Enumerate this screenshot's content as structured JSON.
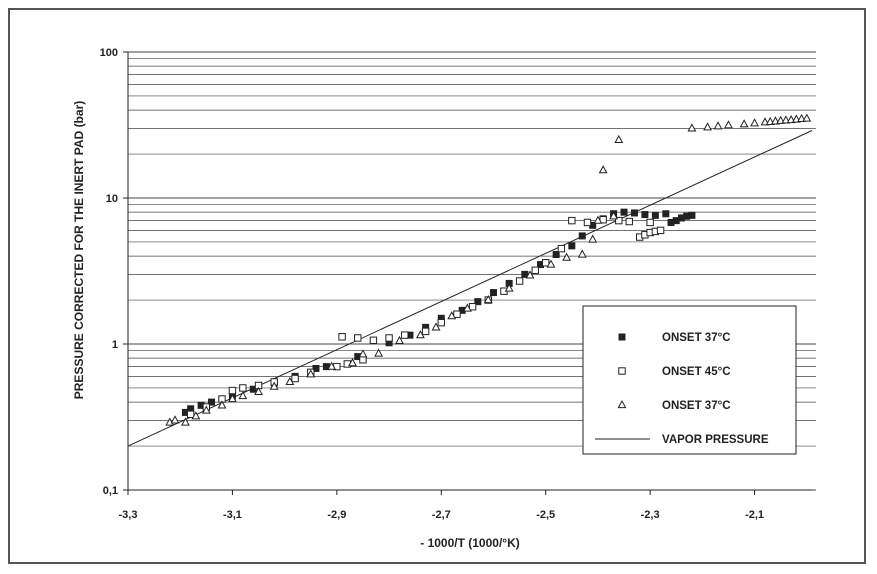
{
  "chart_data": {
    "type": "scatter",
    "x_label": "- 1000/T (1000/°K)",
    "y_label": "PRESSURE CORRECTED FOR THE INERT PAD (bar)",
    "x_range": [
      -3.3,
      -1.99
    ],
    "y_range": [
      0.1,
      100
    ],
    "y_scale": "log",
    "x_ticks": [
      -3.3,
      -3.1,
      -2.9,
      -2.7,
      -2.5,
      -2.3,
      -2.1
    ],
    "x_tick_labels": [
      "-3,3",
      "-3,1",
      "-2,9",
      "-2,7",
      "-2,5",
      "-2,3",
      "-2,1"
    ],
    "y_ticks": [
      0.1,
      1,
      10,
      100
    ],
    "y_tick_labels": [
      "0,1",
      "1",
      "10",
      "100"
    ],
    "grid": "horizontal",
    "legend_position": "lower-right",
    "series": [
      {
        "name": "ONSET 37°C",
        "marker": "filled-square",
        "points": [
          [
            -3.19,
            0.34
          ],
          [
            -3.18,
            0.36
          ],
          [
            -3.16,
            0.38
          ],
          [
            -3.14,
            0.4
          ],
          [
            -3.12,
            0.42
          ],
          [
            -3.1,
            0.44
          ],
          [
            -3.06,
            0.49
          ],
          [
            -3.02,
            0.54
          ],
          [
            -2.98,
            0.6
          ],
          [
            -2.94,
            0.68
          ],
          [
            -2.92,
            0.7
          ],
          [
            -2.86,
            0.82
          ],
          [
            -2.8,
            1.02
          ],
          [
            -2.76,
            1.15
          ],
          [
            -2.73,
            1.3
          ],
          [
            -2.7,
            1.5
          ],
          [
            -2.66,
            1.7
          ],
          [
            -2.63,
            1.95
          ],
          [
            -2.6,
            2.25
          ],
          [
            -2.57,
            2.6
          ],
          [
            -2.54,
            3.0
          ],
          [
            -2.51,
            3.5
          ],
          [
            -2.48,
            4.1
          ],
          [
            -2.45,
            4.7
          ],
          [
            -2.43,
            5.5
          ],
          [
            -2.41,
            6.5
          ],
          [
            -2.39,
            7.2
          ],
          [
            -2.37,
            7.8
          ],
          [
            -2.35,
            8.0
          ],
          [
            -2.33,
            7.9
          ],
          [
            -2.31,
            7.7
          ],
          [
            -2.29,
            7.6
          ],
          [
            -2.27,
            7.8
          ],
          [
            -2.26,
            6.8
          ],
          [
            -2.25,
            7.0
          ],
          [
            -2.24,
            7.3
          ],
          [
            -2.23,
            7.5
          ],
          [
            -2.22,
            7.6
          ]
        ]
      },
      {
        "name": "ONSET 45°C",
        "marker": "open-square",
        "points": [
          [
            -3.18,
            0.33
          ],
          [
            -3.15,
            0.37
          ],
          [
            -3.12,
            0.42
          ],
          [
            -3.1,
            0.48
          ],
          [
            -3.08,
            0.5
          ],
          [
            -3.05,
            0.52
          ],
          [
            -3.02,
            0.55
          ],
          [
            -2.98,
            0.58
          ],
          [
            -2.95,
            0.64
          ],
          [
            -2.9,
            0.7
          ],
          [
            -2.88,
            0.73
          ],
          [
            -2.85,
            0.78
          ],
          [
            -2.89,
            1.12
          ],
          [
            -2.86,
            1.1
          ],
          [
            -2.83,
            1.06
          ],
          [
            -2.8,
            1.1
          ],
          [
            -2.77,
            1.15
          ],
          [
            -2.73,
            1.22
          ],
          [
            -2.7,
            1.4
          ],
          [
            -2.67,
            1.6
          ],
          [
            -2.64,
            1.8
          ],
          [
            -2.61,
            2.0
          ],
          [
            -2.58,
            2.3
          ],
          [
            -2.55,
            2.7
          ],
          [
            -2.52,
            3.2
          ],
          [
            -2.5,
            3.6
          ],
          [
            -2.47,
            4.5
          ],
          [
            -2.45,
            7.0
          ],
          [
            -2.42,
            6.8
          ],
          [
            -2.39,
            7.1
          ],
          [
            -2.36,
            7.0
          ],
          [
            -2.34,
            6.9
          ],
          [
            -2.32,
            5.4
          ],
          [
            -2.31,
            5.6
          ],
          [
            -2.3,
            5.8
          ],
          [
            -2.29,
            5.9
          ],
          [
            -2.28,
            6.0
          ],
          [
            -2.3,
            6.8
          ]
        ]
      },
      {
        "name": "ONSET 37°C",
        "marker": "open-triangle",
        "points": [
          [
            -3.22,
            0.29
          ],
          [
            -3.21,
            0.3
          ],
          [
            -3.19,
            0.29
          ],
          [
            -3.17,
            0.32
          ],
          [
            -3.15,
            0.35
          ],
          [
            -3.12,
            0.38
          ],
          [
            -3.1,
            0.42
          ],
          [
            -3.08,
            0.44
          ],
          [
            -3.05,
            0.47
          ],
          [
            -3.02,
            0.51
          ],
          [
            -2.99,
            0.55
          ],
          [
            -2.95,
            0.62
          ],
          [
            -2.91,
            0.7
          ],
          [
            -2.87,
            0.74
          ],
          [
            -2.85,
            0.85
          ],
          [
            -2.82,
            0.86
          ],
          [
            -2.78,
            1.05
          ],
          [
            -2.74,
            1.15
          ],
          [
            -2.71,
            1.3
          ],
          [
            -2.68,
            1.55
          ],
          [
            -2.65,
            1.75
          ],
          [
            -2.61,
            2.0
          ],
          [
            -2.57,
            2.4
          ],
          [
            -2.53,
            2.95
          ],
          [
            -2.49,
            3.5
          ],
          [
            -2.46,
            3.9
          ],
          [
            -2.43,
            4.1
          ],
          [
            -2.41,
            5.2
          ],
          [
            -2.4,
            7.0
          ],
          [
            -2.37,
            7.5
          ],
          [
            -2.39,
            15.5
          ],
          [
            -2.36,
            25.0
          ],
          [
            -2.22,
            30.0
          ],
          [
            -2.19,
            30.5
          ],
          [
            -2.17,
            31.0
          ],
          [
            -2.15,
            31.5
          ],
          [
            -2.12,
            32.0
          ],
          [
            -2.1,
            32.5
          ],
          [
            -2.08,
            33.0
          ],
          [
            -2.07,
            33.2
          ],
          [
            -2.06,
            33.5
          ],
          [
            -2.05,
            33.8
          ],
          [
            -2.04,
            34.0
          ],
          [
            -2.03,
            34.2
          ],
          [
            -2.02,
            34.5
          ],
          [
            -2.01,
            34.8
          ],
          [
            -2.0,
            35.0
          ]
        ]
      },
      {
        "name": "VAPOR PRESSURE",
        "marker": "line",
        "points": [
          [
            -3.3,
            0.2
          ],
          [
            -1.99,
            29.0
          ]
        ]
      }
    ]
  }
}
